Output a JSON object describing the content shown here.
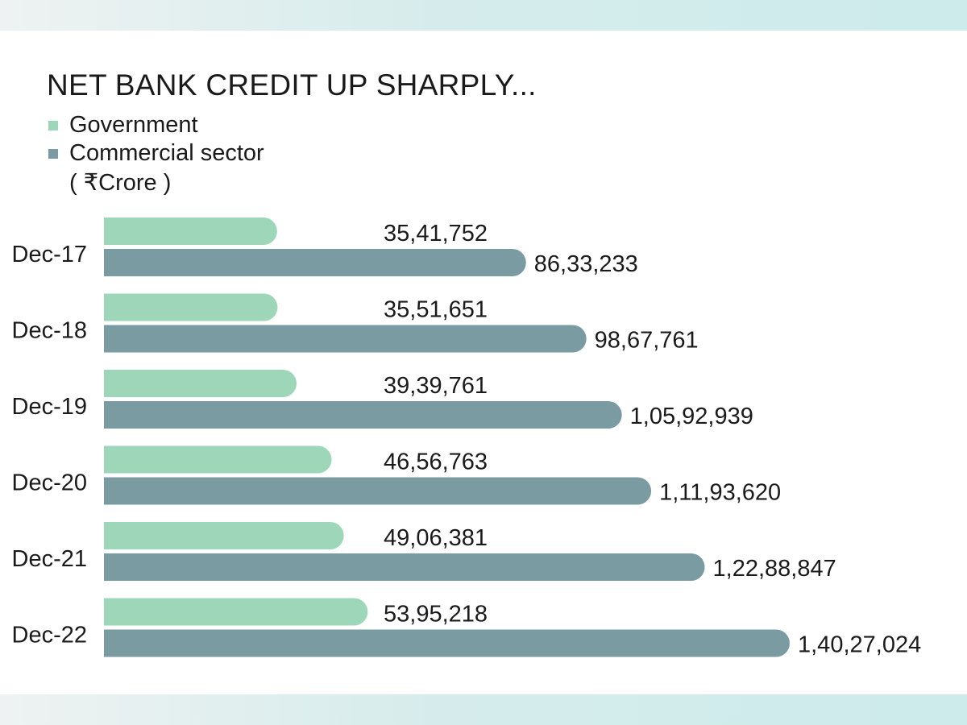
{
  "chart_data": {
    "type": "bar",
    "orientation": "horizontal",
    "title": "NET BANK CREDIT UP SHARPLY...",
    "unit_label": "( ₹Crore )",
    "categories": [
      "Dec-17",
      "Dec-18",
      "Dec-19",
      "Dec-20",
      "Dec-21",
      "Dec-22"
    ],
    "series": [
      {
        "name": "Government",
        "color": "#9dd6b8",
        "values": [
          3541752,
          3551651,
          3939761,
          4656763,
          4906381,
          5395218
        ],
        "labels": [
          "35,41,752",
          "35,51,651",
          "39,39,761",
          "46,56,763",
          "49,06,381",
          "53,95,218"
        ]
      },
      {
        "name": "Commercial sector",
        "color": "#7a9ba1",
        "values": [
          8633233,
          9867761,
          10592939,
          11193620,
          12288847,
          14027024
        ],
        "labels": [
          "86,33,233",
          "98,67,761",
          "1,05,92,939",
          "1,11,93,620",
          "1,22,88,847",
          "1,40,27,024"
        ]
      }
    ],
    "xlim": [
      0,
      14027024
    ],
    "grid": false,
    "legend_position": "top-left"
  },
  "colors": {
    "band": "#cdebeb",
    "government": "#9dd6b8",
    "commercial": "#7a9ba1"
  }
}
